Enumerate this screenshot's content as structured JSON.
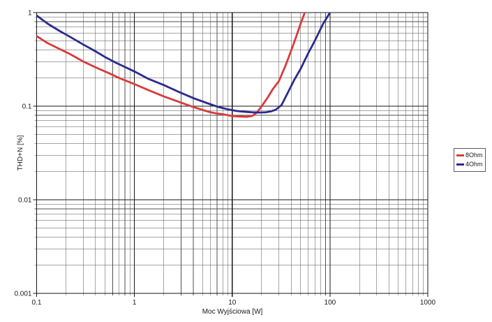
{
  "chart_data": {
    "type": "line",
    "title": "",
    "xlabel": "Moc Wyjściowa [W]",
    "ylabel": "THD+N [%]",
    "x_scale": "log",
    "y_scale": "log",
    "xlim": [
      0.1,
      1000
    ],
    "ylim": [
      0.001,
      1
    ],
    "x_ticks": [
      0.1,
      1,
      10,
      100,
      1000
    ],
    "x_tick_labels": [
      "0.1",
      "1",
      "10",
      "100",
      "1000"
    ],
    "y_ticks": [
      1,
      0.1,
      0.01,
      0.001
    ],
    "y_tick_labels": [
      "1",
      "0.1",
      "0.01",
      "0.001"
    ],
    "grid": "log major and minor gridlines on both axes",
    "legend_position": "outside-right",
    "series": [
      {
        "name": "8Ohm",
        "color": "#d83b3b",
        "x": [
          0.1,
          0.13,
          0.17,
          0.22,
          0.3,
          0.4,
          0.55,
          0.7,
          1.0,
          1.4,
          2.0,
          2.8,
          4.0,
          5.0,
          6.0,
          7.0,
          8.0,
          10.0,
          12.0,
          14.0,
          16.0,
          18.0,
          20.0,
          23.0,
          26.0,
          30.0,
          35.0,
          40.0,
          45.0,
          50.0,
          55.0,
          58.0
        ],
        "y": [
          0.56,
          0.47,
          0.41,
          0.36,
          0.3,
          0.26,
          0.225,
          0.2,
          0.172,
          0.148,
          0.127,
          0.112,
          0.098,
          0.091,
          0.086,
          0.0835,
          0.082,
          0.0785,
          0.0775,
          0.077,
          0.0785,
          0.086,
          0.1,
          0.123,
          0.152,
          0.185,
          0.27,
          0.39,
          0.55,
          0.76,
          0.99,
          1.15
        ]
      },
      {
        "name": "4Ohm",
        "color": "#2b2b8c",
        "x": [
          0.1,
          0.13,
          0.17,
          0.22,
          0.3,
          0.4,
          0.5,
          0.65,
          0.8,
          1.0,
          1.4,
          2.0,
          2.8,
          4.0,
          5.5,
          7.0,
          9.0,
          11.0,
          13.0,
          16.0,
          19.0,
          22.0,
          25.0,
          28.0,
          32.0,
          37.0,
          43.0,
          50.0,
          60.0,
          70.0,
          85.0,
          100.0,
          110.0
        ],
        "y": [
          0.93,
          0.76,
          0.64,
          0.55,
          0.455,
          0.385,
          0.335,
          0.29,
          0.262,
          0.235,
          0.195,
          0.168,
          0.143,
          0.122,
          0.108,
          0.099,
          0.0925,
          0.089,
          0.0875,
          0.086,
          0.0855,
          0.086,
          0.088,
          0.092,
          0.103,
          0.139,
          0.19,
          0.25,
          0.37,
          0.5,
          0.76,
          1.0,
          1.15
        ]
      }
    ]
  },
  "style": {
    "background": "#ffffff",
    "grid_minor_color": "#4f4f4f",
    "grid_major_color": "#161616",
    "text_color": "#1a1a1a",
    "curve_width": 2.8
  }
}
